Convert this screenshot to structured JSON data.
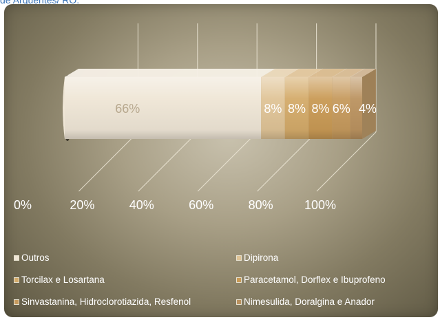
{
  "caption": "de Arquentes/ RO.",
  "chart_data": {
    "type": "bar",
    "orientation": "horizontal",
    "stacked": "100%",
    "xlim": [
      0,
      100
    ],
    "ticks": [
      "0%",
      "20%",
      "40%",
      "60%",
      "80%",
      "100%"
    ],
    "tick_values": [
      0,
      20,
      40,
      60,
      80,
      100
    ],
    "grid": true,
    "legend_position": "bottom",
    "series": [
      {
        "name": "Outros",
        "value": 66,
        "label": "66%",
        "color": "#efe6d6"
      },
      {
        "name": "Dipirona",
        "value": 8,
        "label": "8%",
        "color": "#e0c497"
      },
      {
        "name": "Torcilax e Losartana",
        "value": 8,
        "label": "8%",
        "color": "#d4ab6a"
      },
      {
        "name": "Paracetamol, Dorflex e Ibuprofeno",
        "value": 8,
        "label": "8%",
        "color": "#c99a55"
      },
      {
        "name": "Sinvastanina, Hidroclorotiazida, Resfenol",
        "value": 6,
        "label": "6%",
        "color": "#c69a5d"
      },
      {
        "name": "Nimesulida, Doralgina e Anador",
        "value": 4,
        "label": "4%",
        "color": "#bb9360"
      }
    ]
  }
}
